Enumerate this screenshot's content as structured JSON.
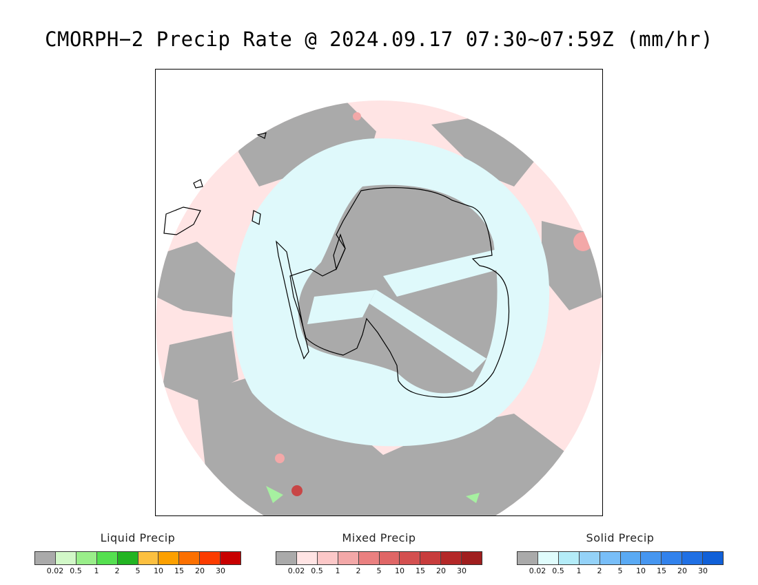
{
  "title": "CMORPH−2 Precip Rate @ 2024.09.17 07:30~07:59Z (mm/hr)",
  "map": {
    "projection": "south-polar-stereographic",
    "colors": {
      "none": "#ffffff",
      "low": "#aaaaaa",
      "mixed_light": "#ffe4e4",
      "mixed_mid": "#f3a8a8",
      "mixed_dark": "#c84646",
      "solid_light": "#dff9fb",
      "liquid": "#a6f0a0",
      "coast": "#000000"
    }
  },
  "legends": [
    {
      "title": "Liquid Precip",
      "colors": [
        "#aaaaaa",
        "#d2f8c8",
        "#9aee8a",
        "#55e050",
        "#22b422",
        "#fcc040",
        "#fca000",
        "#fc7000",
        "#fc3c00",
        "#c80000"
      ],
      "ticks": [
        "0.02",
        "0.5",
        "1",
        "2",
        "5",
        "10",
        "15",
        "20",
        "30"
      ]
    },
    {
      "title": "Mixed Precip",
      "colors": [
        "#aaaaaa",
        "#ffe4e4",
        "#fcc8c8",
        "#f3a8a8",
        "#ea8080",
        "#e06666",
        "#d45050",
        "#c83c3c",
        "#b42828",
        "#a01e1e"
      ],
      "ticks": [
        "0.02",
        "0.5",
        "1",
        "2",
        "5",
        "10",
        "15",
        "20",
        "30"
      ]
    },
    {
      "title": "Solid Precip",
      "colors": [
        "#aaaaaa",
        "#e0fcfc",
        "#b4ecf8",
        "#94d2f8",
        "#78bef8",
        "#5aaaf4",
        "#4696f0",
        "#3282ec",
        "#2070e4",
        "#1060d8"
      ],
      "ticks": [
        "0.02",
        "0.5",
        "1",
        "2",
        "5",
        "10",
        "15",
        "20",
        "30"
      ]
    }
  ]
}
